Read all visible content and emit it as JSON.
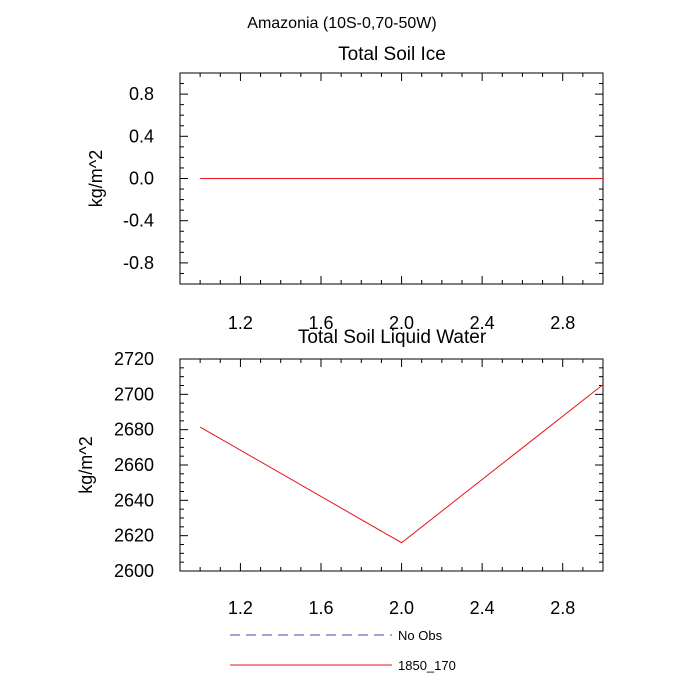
{
  "figure_title": "Amazonia (10S-0,70-50W)",
  "legend": [
    {
      "label": "No Obs",
      "color": "#4a4aa8",
      "dashed": true
    },
    {
      "label": "1850_170",
      "color": "#e8141c",
      "dashed": false
    }
  ],
  "chart_data": [
    {
      "type": "line",
      "title": "Total Soil Ice",
      "xlabel": "",
      "ylabel": "kg/m^2",
      "xlim": [
        0.9,
        3.0
      ],
      "ylim": [
        -1.0,
        1.0
      ],
      "x_ticks": [
        "1.2",
        "1.6",
        "2.0",
        "2.4",
        "2.8"
      ],
      "y_ticks": [
        "-0.8",
        "-0.4",
        "0.0",
        "0.4",
        "0.8"
      ],
      "series": [
        {
          "name": "1850_170",
          "color": "#e8141c",
          "x": [
            1,
            2,
            3
          ],
          "values": [
            0,
            0,
            0
          ]
        }
      ]
    },
    {
      "type": "line",
      "title": "Total Soil Liquid Water",
      "xlabel": "",
      "ylabel": "kg/m^2",
      "xlim": [
        0.9,
        3.0
      ],
      "ylim": [
        2600,
        2720
      ],
      "x_ticks": [
        "1.2",
        "1.6",
        "2.0",
        "2.4",
        "2.8"
      ],
      "y_ticks": [
        "2600",
        "2620",
        "2640",
        "2660",
        "2680",
        "2700",
        "2720"
      ],
      "series": [
        {
          "name": "1850_170",
          "color": "#e8141c",
          "x": [
            1,
            2,
            3
          ],
          "values": [
            2681.5,
            2616,
            2705.5
          ]
        }
      ]
    }
  ]
}
